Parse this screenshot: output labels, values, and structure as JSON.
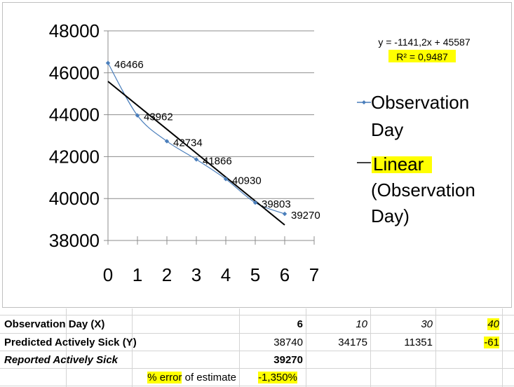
{
  "chart_data": {
    "type": "scatter",
    "series": [
      {
        "name": "Observation Day",
        "x": [
          0,
          1,
          2,
          3,
          4,
          5,
          6
        ],
        "y": [
          46466,
          43962,
          42734,
          41866,
          40930,
          39803,
          39270
        ],
        "labels": [
          "46466",
          "43962",
          "42734",
          "41866",
          "40930",
          "39803",
          "39270"
        ],
        "color": "#4a7ebb",
        "marker": "diamond",
        "smooth_line": true
      }
    ],
    "trendline": {
      "name": "Linear (Observation Day)",
      "slope": -1141.2,
      "intercept": 45587,
      "x_range": [
        0,
        6
      ],
      "color": "#000000",
      "equation": "y = -1141,2x + 45587",
      "r2_label": "R² = 0,9487"
    },
    "xlim": [
      0,
      7
    ],
    "ylim": [
      38000,
      48000
    ],
    "x_ticks": [
      "0",
      "1",
      "2",
      "3",
      "4",
      "5",
      "6",
      "7"
    ],
    "y_ticks": [
      "38000",
      "40000",
      "42000",
      "44000",
      "46000",
      "48000"
    ],
    "gridlines": "horizontal",
    "legend_position": "right",
    "legend": [
      {
        "lines": [
          "Observation",
          "Day"
        ],
        "style": "marker-line"
      },
      {
        "lines": [
          "Linear",
          "(Observation",
          "Day)"
        ],
        "style": "line"
      }
    ]
  },
  "table": {
    "rows": [
      {
        "label": "Observation Day (X)",
        "c1": "6",
        "c2": "10",
        "c3": "30",
        "c4": "40"
      },
      {
        "label": "Predicted Actively Sick (Y)",
        "c1": "38740",
        "c2": "34175",
        "c3": "11351",
        "c4": "-61"
      },
      {
        "label": "Reported Actively Sick",
        "c1": "39270"
      },
      {
        "label_part1": "% error",
        "label_part2": " of estimate",
        "c1": "-1,350%"
      }
    ]
  },
  "colors": {
    "highlight": "#ffff00",
    "series": "#4a7ebb",
    "trend": "#000000"
  }
}
